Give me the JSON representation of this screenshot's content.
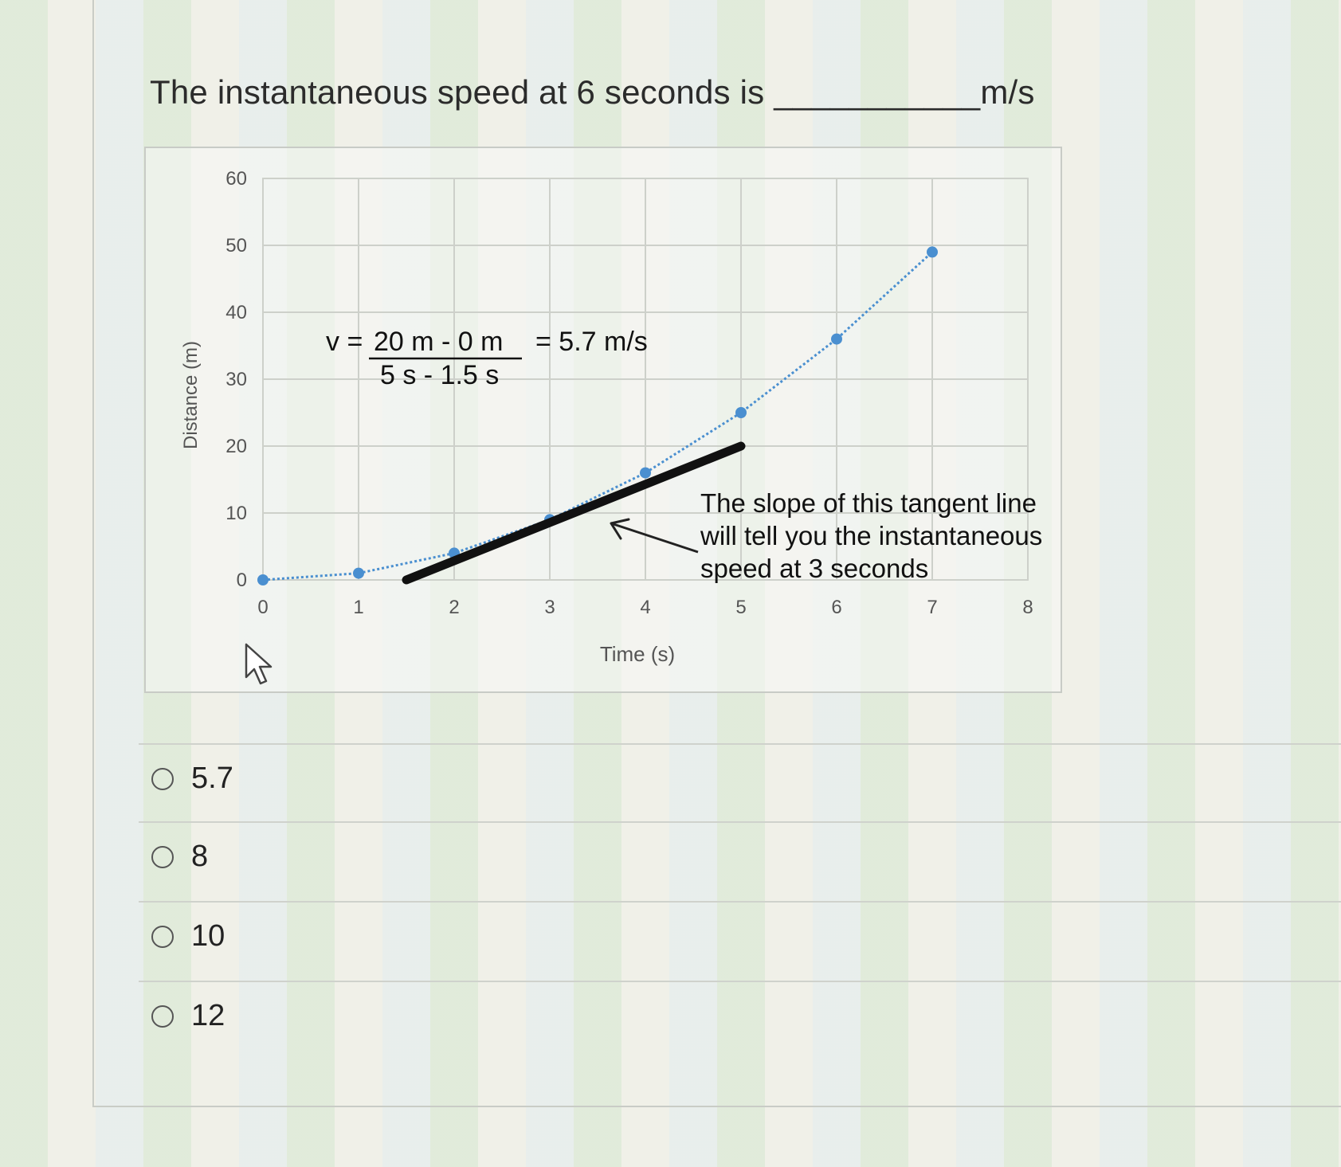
{
  "question": {
    "text": "The instantaneous speed at 6 seconds is",
    "blank": "___________",
    "unit": "m/s"
  },
  "chart_data": {
    "type": "scatter",
    "xlabel": "Time (s)",
    "ylabel": "Distance (m)",
    "xlim": [
      0,
      8
    ],
    "ylim": [
      0,
      60
    ],
    "x_ticks": [
      "0",
      "1",
      "2",
      "3",
      "4",
      "5",
      "6",
      "7",
      "8"
    ],
    "y_ticks": [
      "0",
      "10",
      "20",
      "30",
      "40",
      "50",
      "60"
    ],
    "grid": true,
    "series": [
      {
        "color": "#4a8fd0",
        "x": [
          0,
          1,
          2,
          3,
          4,
          5,
          6,
          7
        ],
        "y": [
          0,
          1,
          4,
          9,
          16,
          25,
          36,
          49
        ]
      }
    ],
    "tangent_line": {
      "x": [
        1.5,
        5
      ],
      "y": [
        0,
        20
      ],
      "color": "#111111"
    },
    "annotations": {
      "formula_prefix": "v =",
      "numerator": "20 m - 0 m",
      "equals_result": "= 5.7 m/s",
      "denominator": "5 s - 1.5 s",
      "note_line1": "The slope of this tangent line",
      "note_line2": "will tell you the instantaneous",
      "note_line3": "speed at 3 seconds"
    }
  },
  "choices": [
    {
      "label": "5.7"
    },
    {
      "label": "8"
    },
    {
      "label": "10"
    },
    {
      "label": "12"
    }
  ]
}
